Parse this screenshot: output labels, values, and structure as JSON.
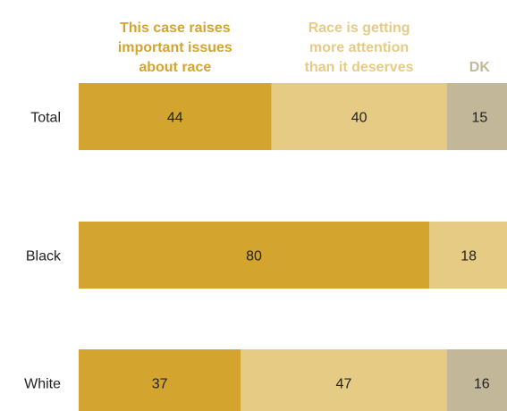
{
  "chart_data": {
    "type": "bar",
    "orientation": "horizontal",
    "stacked": true,
    "categories": [
      "Total",
      "Black",
      "White"
    ],
    "series": [
      {
        "name": "This case raises important issues about race",
        "name_lines": [
          "This case raises",
          "important issues",
          "about race"
        ],
        "color": "#D4A52E",
        "values": [
          44,
          80,
          37
        ]
      },
      {
        "name": "Race is getting more attention than it deserves",
        "name_lines": [
          "Race is getting",
          "more attention",
          "than it deserves"
        ],
        "color": "#E6CB85",
        "values": [
          40,
          18,
          47
        ]
      },
      {
        "name": "DK",
        "name_lines": [
          "DK"
        ],
        "color": "#C2B899",
        "values": [
          15,
          2,
          16
        ]
      }
    ],
    "xlim": [
      0,
      100
    ],
    "grid": false,
    "legend_position": "top"
  }
}
